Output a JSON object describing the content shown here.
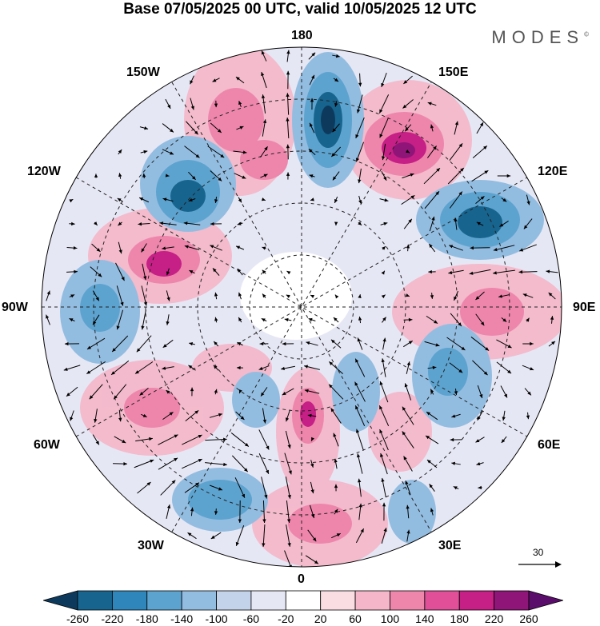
{
  "title": "Base 07/05/2025 00 UTC, valid 10/05/2025 12 UTC",
  "brand": "MODES",
  "brand_mark": "©",
  "longitude_labels": {
    "top": "180",
    "bottom": "0",
    "left": "90W",
    "right": "90E",
    "upper_left_1": "150W",
    "upper_left_2": "120W",
    "upper_right_1": "150E",
    "upper_right_2": "120E",
    "lower_left_1": "60W",
    "lower_left_2": "30W",
    "lower_right_1": "60E",
    "lower_right_2": "30E"
  },
  "reference_vector": {
    "label": "30"
  },
  "colorbar": {
    "ticks": [
      "-260",
      "-220",
      "-180",
      "-140",
      "-100",
      "-60",
      "-20",
      "20",
      "60",
      "100",
      "140",
      "180",
      "220",
      "260"
    ],
    "colors": [
      "#0d3a5c",
      "#17648f",
      "#2f86ba",
      "#5da3cf",
      "#93bde0",
      "#c3d3ea",
      "#e6e7f4",
      "#ffffff",
      "#f9dde3",
      "#f4b6c8",
      "#ee86ac",
      "#e04f98",
      "#c61f86",
      "#8f1578",
      "#5b0d6b"
    ]
  },
  "colors": {
    "negative": "#2f86ba",
    "positive": "#e04f98",
    "land": "#eeeeee"
  }
}
